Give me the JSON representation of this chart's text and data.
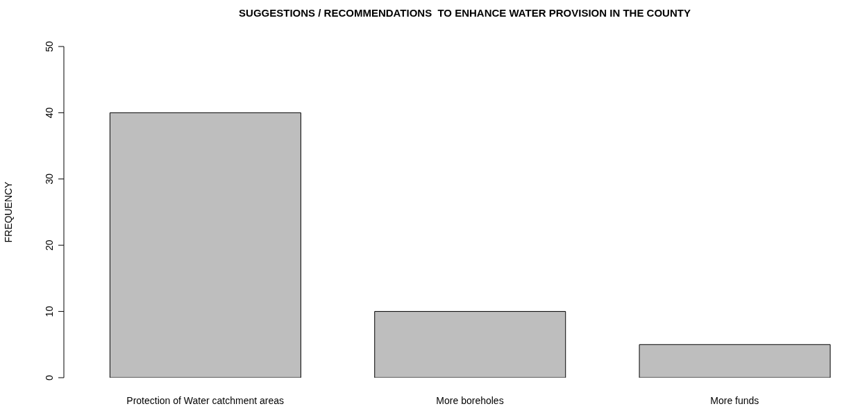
{
  "chart_data": {
    "type": "bar",
    "title": "SUGGESTIONS / RECOMMENDATIONS  TO ENHANCE WATER PROVISION IN THE COUNTY",
    "ylabel": "FREQUENCY",
    "categories": [
      "Protection of Water catchment areas",
      "More boreholes",
      "More funds"
    ],
    "values": [
      40,
      10,
      5
    ],
    "color": "#bebebe",
    "ylim": [
      0,
      50
    ],
    "yticks": [
      0,
      10,
      20,
      30,
      40,
      50
    ],
    "grid": false
  }
}
